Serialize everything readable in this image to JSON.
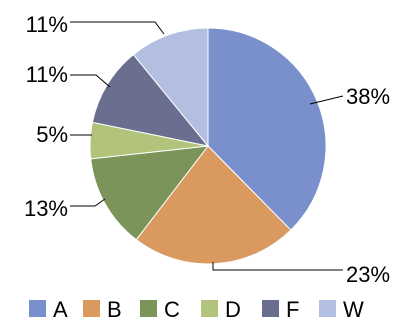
{
  "chart_data": {
    "type": "pie",
    "title": "",
    "categories": [
      "A",
      "B",
      "C",
      "D",
      "F",
      "W"
    ],
    "values": [
      38,
      23,
      13,
      5,
      11,
      11
    ],
    "labels": [
      "38%",
      "23%",
      "13%",
      "5%",
      "11%",
      "11%"
    ],
    "colors": [
      "#7a90cc",
      "#da9a5f",
      "#7b9459",
      "#b2c47b",
      "#6a6f8f",
      "#b2bfe0"
    ],
    "start_angle": "12 o'clock",
    "direction": "clockwise",
    "legend_position": "bottom"
  }
}
